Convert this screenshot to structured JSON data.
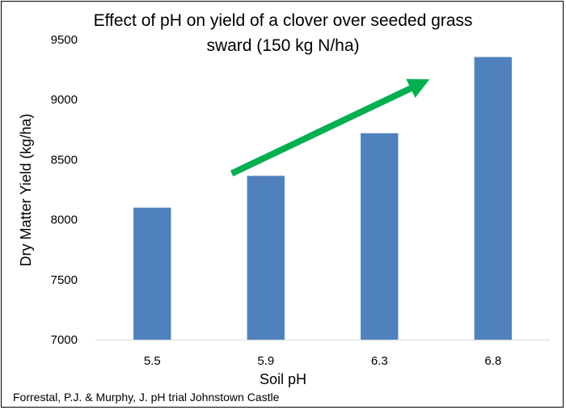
{
  "chart_data": {
    "type": "bar",
    "title_lines": [
      "Effect of pH on yield of a clover over seeded grass",
      "sward (150 kg N/ha)"
    ],
    "xlabel": "Soil pH",
    "ylabel": "Dry Matter Yield (kg/ha)",
    "categories": [
      "5.5",
      "5.9",
      "6.3",
      "6.8"
    ],
    "values": [
      8100,
      8365,
      8720,
      9355
    ],
    "ylim": [
      7000,
      9500
    ],
    "yticks": [
      7000,
      7500,
      8000,
      8500,
      9000,
      9500
    ],
    "grid": false,
    "bar_color": "#4f81bd",
    "annotation": {
      "type": "trend-arrow",
      "color": "#00b050",
      "from": {
        "category_index": 0.7,
        "y": 8385
      },
      "to": {
        "category_index": 2.3,
        "y": 9105
      }
    }
  },
  "source_note": "Forrestal, P.J. & Murphy, J. pH trial Johnstown Castle"
}
